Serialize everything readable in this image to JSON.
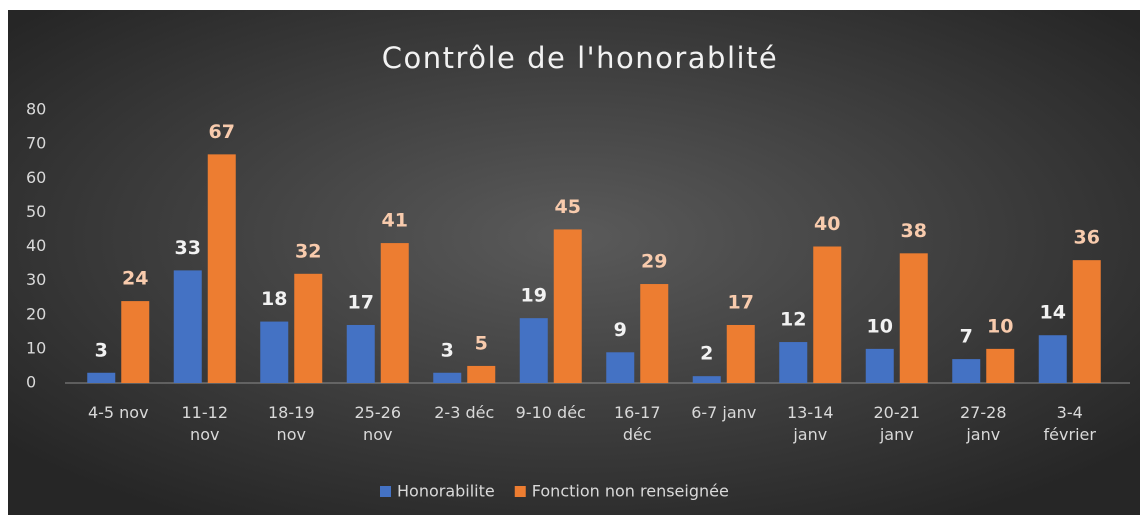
{
  "chart_data": {
    "type": "bar",
    "title": "Contrôle de l'honorablité",
    "categories": [
      "4-5 nov",
      "11-12\nnov",
      "18-19\nnov",
      "25-26\nnov",
      "2-3 déc",
      "9-10 déc",
      "16-17\ndéc",
      "6-7 janv",
      "13-14\njanv",
      "20-21\njanv",
      "27-28\njanv",
      "3-4\nfévrier"
    ],
    "series": [
      {
        "name": "Honorabilite",
        "color": "#4472c4",
        "values": [
          3,
          33,
          18,
          17,
          3,
          19,
          9,
          2,
          12,
          10,
          7,
          14
        ]
      },
      {
        "name": "Fonction non renseignée",
        "color": "#ed7d31",
        "values": [
          24,
          67,
          32,
          41,
          5,
          45,
          29,
          17,
          40,
          38,
          10,
          36
        ]
      }
    ],
    "ylim": [
      0,
      80
    ],
    "yticks": [
      0,
      10,
      20,
      30,
      40,
      50,
      60,
      70,
      80
    ],
    "grid": false,
    "legend": "bottom"
  }
}
